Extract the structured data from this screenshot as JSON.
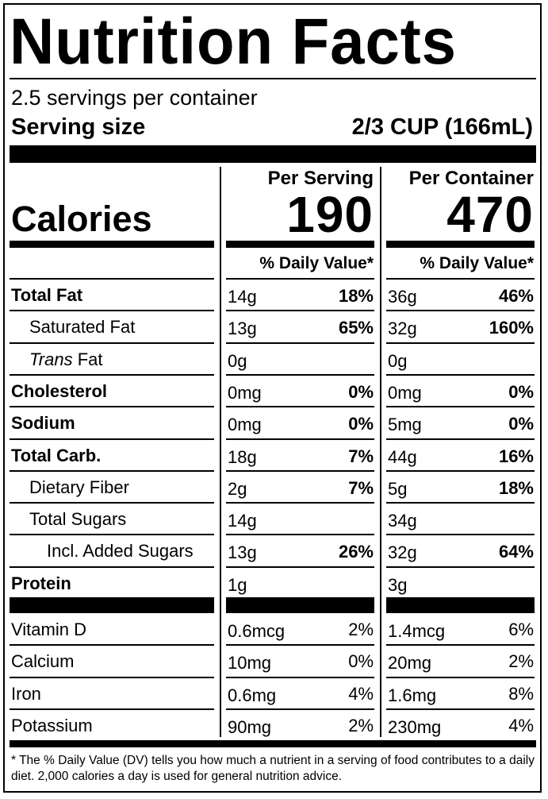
{
  "title": "Nutrition Facts",
  "servings_per_container": "2.5 servings per container",
  "serving_size_label": "Serving size",
  "serving_size_value": "2/3 CUP (166mL)",
  "calories_label": "Calories",
  "columns": {
    "per_serving": {
      "header": "Per Serving",
      "calories": "190",
      "dv_header": "% Daily Value*"
    },
    "per_container": {
      "header": "Per Container",
      "calories": "470",
      "dv_header": "% Daily Value*"
    }
  },
  "nutrients": [
    {
      "label": "Total Fat",
      "style": "bold",
      "serving_amount": "14g",
      "serving_dv": "18%",
      "container_amount": "36g",
      "container_dv": "46%"
    },
    {
      "label": "Saturated Fat",
      "style": "indent1",
      "serving_amount": "13g",
      "serving_dv": "65%",
      "container_amount": "32g",
      "container_dv": "160%"
    },
    {
      "label_italic": "Trans",
      "label": " Fat",
      "style": "indent1",
      "serving_amount": "0g",
      "serving_dv": "",
      "container_amount": "0g",
      "container_dv": ""
    },
    {
      "label": "Cholesterol",
      "style": "bold",
      "serving_amount": "0mg",
      "serving_dv": "0%",
      "container_amount": "0mg",
      "container_dv": "0%"
    },
    {
      "label": "Sodium",
      "style": "bold",
      "serving_amount": "0mg",
      "serving_dv": "0%",
      "container_amount": "5mg",
      "container_dv": "0%"
    },
    {
      "label": "Total Carb.",
      "style": "bold",
      "serving_amount": "18g",
      "serving_dv": "7%",
      "container_amount": "44g",
      "container_dv": "16%"
    },
    {
      "label": "Dietary Fiber",
      "style": "indent1",
      "serving_amount": "2g",
      "serving_dv": "7%",
      "container_amount": "5g",
      "container_dv": "18%"
    },
    {
      "label": "Total Sugars",
      "style": "indent1",
      "serving_amount": "14g",
      "serving_dv": "",
      "container_amount": "34g",
      "container_dv": ""
    },
    {
      "label": "Incl. Added Sugars",
      "style": "indent2",
      "serving_amount": "13g",
      "serving_dv": "26%",
      "container_amount": "32g",
      "container_dv": "64%"
    },
    {
      "label": "Protein",
      "style": "bold",
      "serving_amount": "1g",
      "serving_dv": "",
      "container_amount": "3g",
      "container_dv": ""
    }
  ],
  "vitamins": [
    {
      "label": "Vitamin D",
      "serving_amount": "0.6mcg",
      "serving_dv": "2%",
      "container_amount": "1.4mcg",
      "container_dv": "6%"
    },
    {
      "label": "Calcium",
      "serving_amount": "10mg",
      "serving_dv": "0%",
      "container_amount": "20mg",
      "container_dv": "2%"
    },
    {
      "label": "Iron",
      "serving_amount": "0.6mg",
      "serving_dv": "4%",
      "container_amount": "1.6mg",
      "container_dv": "8%"
    },
    {
      "label": "Potassium",
      "serving_amount": "90mg",
      "serving_dv": "2%",
      "container_amount": "230mg",
      "container_dv": "4%"
    }
  ],
  "footnote": "* The % Daily Value (DV) tells you how much a nutrient in a serving of food contributes to a daily diet. 2,000 calories a day is used for general nutrition advice."
}
